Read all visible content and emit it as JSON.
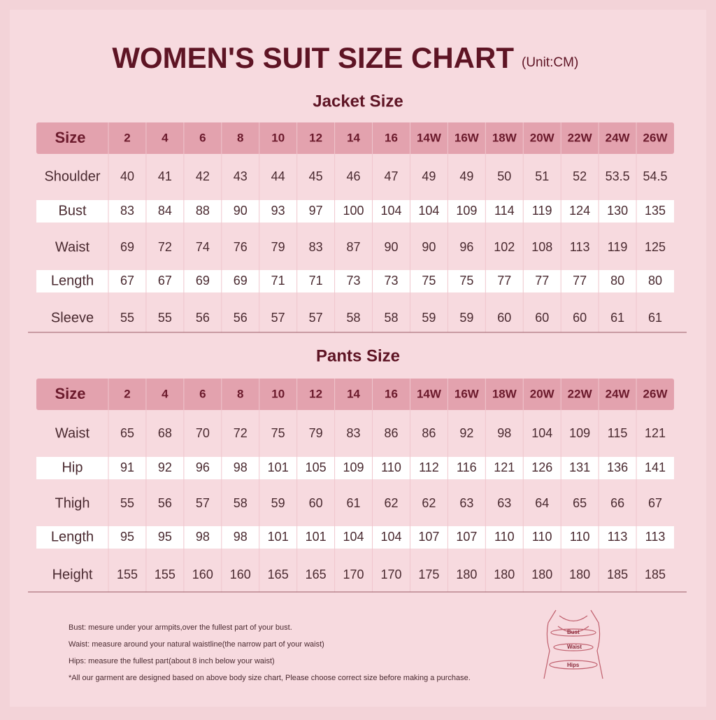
{
  "header": {
    "title": "WOMEN'S SUIT SIZE CHART",
    "unit": "(Unit:CM)"
  },
  "jacket": {
    "title": "Jacket Size",
    "header": [
      "Size",
      "2",
      "4",
      "6",
      "8",
      "10",
      "12",
      "14",
      "16",
      "14W",
      "16W",
      "18W",
      "20W",
      "22W",
      "24W",
      "26W"
    ],
    "rows": [
      [
        "Shoulder",
        40,
        41,
        42,
        43,
        44,
        45,
        46,
        47,
        49,
        49,
        50,
        51,
        52,
        53.5,
        54.5
      ],
      [
        "Bust",
        83,
        84,
        88,
        90,
        93,
        97,
        100,
        104,
        104,
        109,
        114,
        119,
        124,
        130,
        135
      ],
      [
        "Waist",
        69,
        72,
        74,
        76,
        79,
        83,
        87,
        90,
        90,
        96,
        102,
        108,
        113,
        119,
        125
      ],
      [
        "Length",
        67,
        67,
        69,
        69,
        71,
        71,
        73,
        73,
        75,
        75,
        77,
        77,
        77,
        80,
        80
      ],
      [
        "Sleeve",
        55,
        55,
        56,
        56,
        57,
        57,
        58,
        58,
        59,
        59,
        60,
        60,
        60,
        61,
        61
      ]
    ]
  },
  "pants": {
    "title": "Pants Size",
    "header": [
      "Size",
      "2",
      "4",
      "6",
      "8",
      "10",
      "12",
      "14",
      "16",
      "14W",
      "16W",
      "18W",
      "20W",
      "22W",
      "24W",
      "26W"
    ],
    "rows": [
      [
        "Waist",
        65,
        68,
        70,
        72,
        75,
        79,
        83,
        86,
        86,
        92,
        98,
        104,
        109,
        115,
        121
      ],
      [
        "Hip",
        91,
        92,
        96,
        98,
        101,
        105,
        109,
        110,
        112,
        116,
        121,
        126,
        131,
        136,
        141
      ],
      [
        "Thigh",
        55,
        56,
        57,
        58,
        59,
        60,
        61,
        62,
        62,
        63,
        63,
        64,
        65,
        66,
        67
      ],
      [
        "Length",
        95,
        95,
        98,
        98,
        101,
        101,
        104,
        104,
        107,
        107,
        110,
        110,
        110,
        113,
        113
      ],
      [
        "Height",
        155,
        155,
        160,
        160,
        165,
        165,
        170,
        170,
        175,
        180,
        180,
        180,
        180,
        185,
        185
      ]
    ]
  },
  "notes": [
    "Bust: mesure under your armpits,over the fullest part of your bust.",
    "Waist: measure around your natural waistline(the narrow part of your waist)",
    "Hips: measure the fullest part(about 8 inch below your waist)",
    "*All our garment are designed based on above body size chart, Please choose correct size before making a purchase."
  ],
  "figure": {
    "labels": [
      "Bust",
      "Waist",
      "Hips"
    ]
  }
}
